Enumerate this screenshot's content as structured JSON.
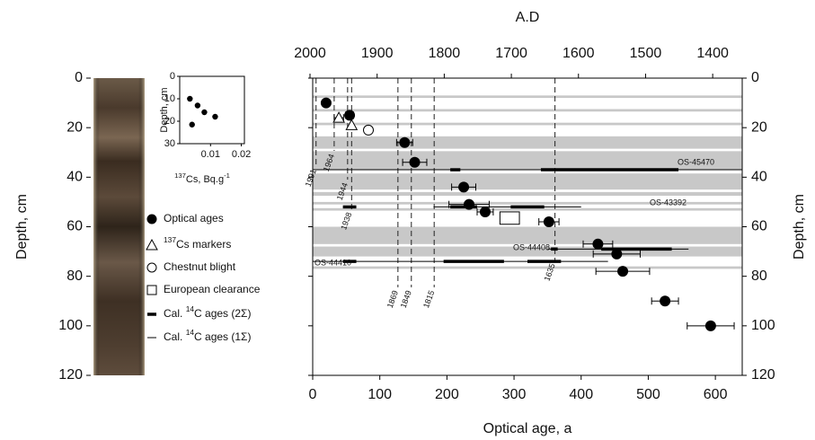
{
  "chart_data": [
    {
      "type": "scatter",
      "xlabel": "Optical age, a",
      "x2label": "A.D",
      "ylabel": "Depth, cm",
      "xlim": [
        0,
        640
      ],
      "xticks": [
        0,
        100,
        200,
        300,
        400,
        500,
        600
      ],
      "x2lim": [
        1996,
        1356
      ],
      "x2ticks": [
        2000,
        1900,
        1800,
        1700,
        1600,
        1500,
        1400
      ],
      "ylim": [
        0,
        120
      ],
      "yticks": [
        0,
        20,
        40,
        60,
        80,
        100,
        120
      ],
      "y_inverted": true,
      "bands": {
        "color": "#c8c8c8",
        "top": [
          7,
          12.5,
          18,
          23.5,
          29.5,
          38.5,
          46,
          50,
          52.5,
          60,
          68,
          76
        ],
        "bottom": [
          8,
          13.5,
          19,
          28.5,
          37,
          45,
          47.5,
          51,
          53.5,
          67,
          72,
          77
        ]
      },
      "events": [
        1991,
        1964,
        1944,
        1938,
        1869,
        1849,
        1815,
        1635
      ],
      "samples": [
        "OS-45470",
        "OS-43392",
        "OS-44408",
        "OS-44410"
      ],
      "series": [
        {
          "name": [
            {
              "t": "Optical ages"
            }
          ],
          "marker": "filled-circle",
          "x": [
            20,
            55,
            137,
            152,
            225,
            233,
            257,
            352,
            425,
            453,
            462,
            525,
            593
          ],
          "y": [
            10,
            15,
            26,
            34,
            44,
            51,
            54,
            58,
            67,
            71,
            78,
            90,
            100
          ],
          "xerr": [
            0,
            6,
            12,
            18,
            18,
            30,
            12,
            15,
            22,
            35,
            40,
            20,
            35
          ]
        },
        {
          "name": [
            {
              "t": "137",
              "sup": true
            },
            {
              "t": "Cs markers"
            }
          ],
          "marker": "open-triangle",
          "x": [
            39,
            58
          ],
          "y": [
            16,
            19
          ],
          "xerr": [
            7,
            0
          ]
        },
        {
          "name": [
            {
              "t": "Chestnut blight"
            }
          ],
          "marker": "open-circle",
          "x": [
            83
          ],
          "y": [
            21
          ]
        },
        {
          "name": [
            {
              "t": "European clearance"
            }
          ],
          "marker": "open-square",
          "x": [
            279,
            308
          ],
          "y": [
            54,
            59
          ]
        },
        {
          "name": [
            {
              "t": "Cal. "
            },
            {
              "t": "14",
              "sup": true
            },
            {
              "t": "C ages (2Σ)"
            }
          ],
          "marker": "thick-line",
          "y": [
            37,
            37,
            52,
            52,
            52,
            69,
            69,
            74,
            74,
            74
          ],
          "x1": [
            205,
            340,
            45,
            205,
            295,
            355,
            430,
            45,
            195,
            320
          ],
          "x2": [
            220,
            545,
            65,
            245,
            345,
            365,
            535,
            65,
            285,
            370
          ]
        },
        {
          "name": [
            {
              "t": "Cal. "
            },
            {
              "t": "14",
              "sup": true
            },
            {
              "t": "C ages (1Σ)"
            }
          ],
          "marker": "thin-line",
          "y": [
            37,
            52,
            69,
            74
          ],
          "x1": [
            0,
            180,
            350,
            0
          ],
          "x2": [
            640,
            400,
            560,
            440
          ]
        }
      ]
    },
    {
      "type": "scatter",
      "ylabel": "Depth, cm",
      "xlabel": [
        {
          "t": "137",
          "sup": true
        },
        {
          "t": "Cs, Bq.g"
        },
        {
          "t": "-1",
          "sup": true
        }
      ],
      "xlim": [
        0,
        0.021
      ],
      "xticks": [
        0.01,
        0.02
      ],
      "ylim": [
        0,
        30
      ],
      "yticks": [
        0,
        10,
        20,
        30
      ],
      "y_inverted": true,
      "x": [
        0.0033,
        0.0058,
        0.008,
        0.0115,
        0.004
      ],
      "y": [
        10,
        13,
        16,
        18,
        21.5
      ]
    }
  ]
}
